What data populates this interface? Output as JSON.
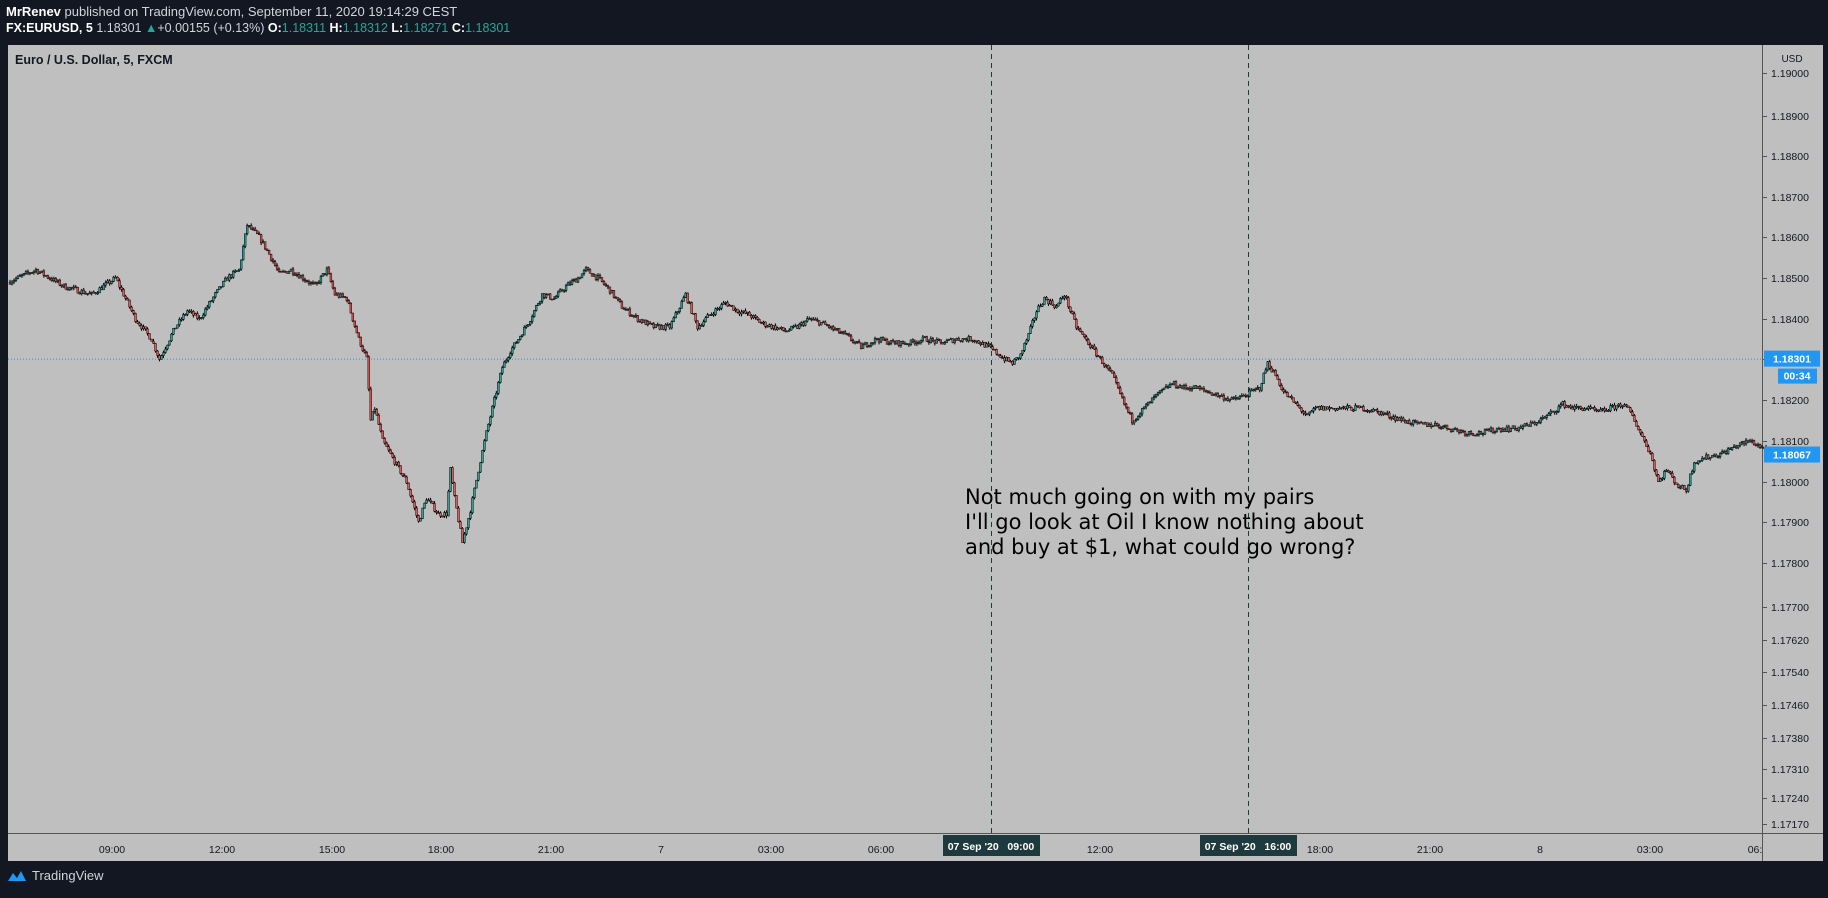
{
  "header": {
    "publisher": "MrRenev",
    "published_text": "published on TradingView.com, September 11, 2020 19:14:29 CEST",
    "symbol": "FX:EURUSD, 5",
    "last": "1.18301",
    "change": "+0.00155 (+0.13%)",
    "o_label": "O:",
    "o": "1.18311",
    "h_label": "H:",
    "h": "1.18312",
    "l_label": "L:",
    "l": "1.18271",
    "c_label": "C:",
    "c": "1.18301"
  },
  "footer": {
    "brand": "TradingView"
  },
  "colors": {
    "background": "#bfbfbf",
    "frame": "#131722",
    "up": "#26a69a",
    "down": "#ef5350",
    "candle": "#000000",
    "price_tag": "#2196f3",
    "time_tag": "#1e3a3e"
  },
  "chart_data": {
    "type": "candlestick",
    "title": "Euro / U.S. Dollar, 5, FXCM",
    "currency_label": "USD",
    "ylim": [
      1.1712,
      1.1903
    ],
    "y_ticks": [
      "1.19000",
      "1.18900",
      "1.18800",
      "1.18700",
      "1.18600",
      "1.18500",
      "1.18400",
      "1.18300",
      "1.18200",
      "1.18100",
      "1.18000",
      "1.17900",
      "1.17800",
      "1.17700",
      "1.17620",
      "1.17540",
      "1.17460",
      "1.17380",
      "1.17310",
      "1.17240",
      "1.17170"
    ],
    "x_tick_labels": [
      "09:00",
      "12:00",
      "15:00",
      "18:00",
      "21:00",
      "7",
      "03:00",
      "06:00",
      "12:00",
      "18:00",
      "21:00",
      "8",
      "03:00",
      "06:"
    ],
    "series": [
      {
        "values": [
          [
            0.0,
            1.1849
          ],
          [
            3.5,
            1.1852
          ],
          [
            7.0,
            1.1848
          ],
          [
            10.5,
            1.1846
          ],
          [
            13.5,
            1.185
          ],
          [
            16.0,
            1.184
          ],
          [
            18.0,
            1.1835
          ],
          [
            19.0,
            1.183
          ],
          [
            21.0,
            1.1838
          ],
          [
            22.5,
            1.1842
          ],
          [
            24.0,
            1.184
          ],
          [
            26.0,
            1.1846
          ],
          [
            27.5,
            1.185
          ],
          [
            29.0,
            1.1852
          ],
          [
            30.0,
            1.1863
          ],
          [
            31.5,
            1.186
          ],
          [
            33.0,
            1.1855
          ],
          [
            34.0,
            1.1851
          ],
          [
            35.5,
            1.1852
          ],
          [
            37.0,
            1.185
          ],
          [
            38.5,
            1.1848
          ],
          [
            40.0,
            1.1852
          ],
          [
            41.0,
            1.1846
          ],
          [
            42.5,
            1.1845
          ],
          [
            44.0,
            1.1835
          ],
          [
            45.0,
            1.183
          ],
          [
            45.5,
            1.1815
          ],
          [
            46.0,
            1.1818
          ],
          [
            47.0,
            1.181
          ],
          [
            48.5,
            1.1805
          ],
          [
            50.0,
            1.18
          ],
          [
            51.5,
            1.179
          ],
          [
            52.5,
            1.1796
          ],
          [
            54.0,
            1.1792
          ],
          [
            55.0,
            1.1792
          ],
          [
            55.5,
            1.1803
          ],
          [
            56.0,
            1.1796
          ],
          [
            57.0,
            1.1785
          ],
          [
            58.0,
            1.1793
          ],
          [
            59.0,
            1.1803
          ],
          [
            60.0,
            1.1812
          ],
          [
            61.0,
            1.182
          ],
          [
            62.0,
            1.1828
          ],
          [
            63.0,
            1.1832
          ],
          [
            64.0,
            1.1835
          ],
          [
            65.5,
            1.184
          ],
          [
            67.0,
            1.1846
          ],
          [
            68.5,
            1.1845
          ],
          [
            70.0,
            1.1848
          ],
          [
            71.5,
            1.185
          ],
          [
            72.5,
            1.1852
          ],
          [
            74.0,
            1.185
          ],
          [
            75.5,
            1.1847
          ],
          [
            77.0,
            1.1843
          ],
          [
            79.0,
            1.184
          ],
          [
            81.0,
            1.1838
          ],
          [
            83.0,
            1.1838
          ],
          [
            85.0,
            1.1846
          ],
          [
            86.5,
            1.1838
          ],
          [
            88.0,
            1.1841
          ],
          [
            90.0,
            1.1844
          ],
          [
            91.5,
            1.1842
          ],
          [
            93.0,
            1.1841
          ],
          [
            94.5,
            1.1839
          ],
          [
            96.0,
            1.1838
          ],
          [
            97.5,
            1.1837
          ],
          [
            99.0,
            1.1838
          ],
          [
            100.5,
            1.184
          ],
          [
            102.0,
            1.1839
          ],
          [
            103.0,
            1.1838
          ],
          [
            105.0,
            1.1836
          ],
          [
            107.0,
            1.1833
          ],
          [
            109.0,
            1.1835
          ],
          [
            111.0,
            1.1834
          ],
          [
            113.0,
            1.1834
          ],
          [
            115.0,
            1.1835
          ],
          [
            117.0,
            1.1834
          ],
          [
            119.0,
            1.1835
          ],
          [
            121.0,
            1.1835
          ],
          [
            123.0,
            1.1833
          ],
          [
            125.0,
            1.183
          ],
          [
            126.0,
            1.1829
          ],
          [
            127.0,
            1.1831
          ],
          [
            128.0,
            1.1836
          ],
          [
            129.0,
            1.1842
          ],
          [
            130.0,
            1.1845
          ],
          [
            131.5,
            1.1843
          ],
          [
            132.5,
            1.1846
          ],
          [
            134.0,
            1.1838
          ],
          [
            135.5,
            1.1834
          ],
          [
            137.0,
            1.183
          ],
          [
            138.5,
            1.1826
          ],
          [
            140.0,
            1.1819
          ],
          [
            141.0,
            1.1815
          ],
          [
            142.5,
            1.1818
          ],
          [
            144.0,
            1.1821
          ],
          [
            146.0,
            1.1824
          ],
          [
            147.5,
            1.1823
          ],
          [
            149.0,
            1.1823
          ],
          [
            150.5,
            1.1822
          ],
          [
            152.0,
            1.1821
          ],
          [
            153.5,
            1.182
          ],
          [
            155.0,
            1.1821
          ],
          [
            156.0,
            1.1822
          ],
          [
            157.0,
            1.1823
          ],
          [
            158.0,
            1.1829
          ],
          [
            159.0,
            1.1826
          ],
          [
            160.0,
            1.1822
          ],
          [
            161.5,
            1.1819
          ],
          [
            163.0,
            1.1816
          ],
          [
            164.0,
            1.1818
          ],
          [
            166.0,
            1.1818
          ],
          [
            168.0,
            1.1818
          ],
          [
            170.0,
            1.1818
          ],
          [
            172.0,
            1.1817
          ],
          [
            173.5,
            1.1816
          ],
          [
            175.0,
            1.1815
          ],
          [
            177.0,
            1.1814
          ],
          [
            179.0,
            1.1814
          ],
          [
            181.0,
            1.1813
          ],
          [
            183.0,
            1.1812
          ],
          [
            185.0,
            1.1812
          ],
          [
            187.0,
            1.1813
          ],
          [
            189.0,
            1.1813
          ],
          [
            191.0,
            1.1814
          ],
          [
            193.0,
            1.1816
          ],
          [
            195.0,
            1.1819
          ],
          [
            196.5,
            1.1818
          ],
          [
            198.0,
            1.1818
          ],
          [
            199.5,
            1.1817
          ],
          [
            201.0,
            1.1818
          ],
          [
            202.5,
            1.1819
          ],
          [
            203.5,
            1.1817
          ],
          [
            205.0,
            1.1811
          ],
          [
            206.0,
            1.1807
          ],
          [
            207.0,
            1.18
          ],
          [
            208.0,
            1.1803
          ],
          [
            209.5,
            1.1799
          ],
          [
            210.5,
            1.1798
          ],
          [
            211.5,
            1.1805
          ],
          [
            213.0,
            1.1806
          ],
          [
            215.0,
            1.1807
          ],
          [
            217.0,
            1.1809
          ],
          [
            218.5,
            1.181
          ],
          [
            219.5,
            1.1809
          ],
          [
            220.5,
            1.1808
          ]
        ]
      }
    ],
    "current_price_label": "1.18301",
    "countdown_label": "00:34",
    "secondary_price_label": "1.18067",
    "crosshair_time_labels": [
      "07 Sep '20   09:00",
      "07 Sep '20   16:00"
    ],
    "annotation": [
      "Not much going on with my pairs",
      "I'll go look at Oil I know nothing about",
      "and buy at $1, what could go wrong?"
    ]
  }
}
